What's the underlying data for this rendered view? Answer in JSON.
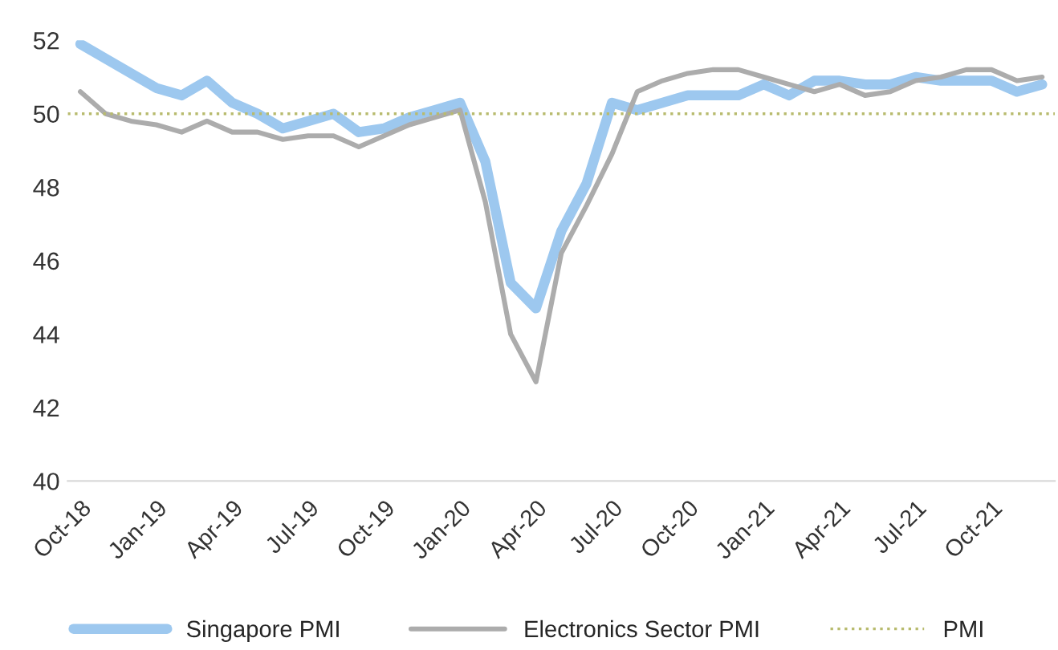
{
  "chart_data": {
    "type": "line",
    "categories": [
      "Oct-18",
      null,
      null,
      "Jan-19",
      null,
      null,
      "Apr-19",
      null,
      null,
      "Jul-19",
      null,
      null,
      "Oct-19",
      null,
      null,
      "Jan-20",
      null,
      null,
      "Apr-20",
      null,
      null,
      "Jul-20",
      null,
      null,
      "Oct-20",
      null,
      null,
      "Jan-21",
      null,
      null,
      "Apr-21",
      null,
      null,
      "Jul-21",
      null,
      null,
      "Oct-21",
      null,
      null
    ],
    "series": [
      {
        "name": "Singapore PMI",
        "color": "#9dc8ef",
        "values": [
          51.9,
          51.5,
          51.1,
          50.7,
          50.5,
          50.9,
          50.3,
          50.0,
          49.6,
          49.8,
          50.0,
          49.5,
          49.6,
          49.9,
          50.1,
          50.3,
          48.7,
          45.4,
          44.7,
          46.8,
          48.1,
          50.3,
          50.1,
          50.3,
          50.5,
          50.5,
          50.5,
          50.8,
          50.5,
          50.9,
          50.9,
          50.8,
          50.8,
          51.0,
          50.9,
          50.9,
          50.9,
          50.6,
          50.8
        ]
      },
      {
        "name": "Electronics Sector PMI",
        "color": "#acacac",
        "values": [
          50.6,
          50.0,
          49.8,
          49.7,
          49.5,
          49.8,
          49.5,
          49.5,
          49.3,
          49.4,
          49.4,
          49.1,
          49.4,
          49.7,
          49.9,
          50.1,
          47.6,
          44.0,
          42.7,
          46.2,
          47.5,
          48.9,
          50.6,
          50.9,
          51.1,
          51.2,
          51.2,
          51.0,
          50.8,
          50.6,
          50.8,
          50.5,
          50.6,
          50.9,
          51.0,
          51.2,
          51.2,
          50.9,
          51.0
        ]
      }
    ],
    "ylim": [
      40,
      52
    ],
    "yticks": [
      40,
      42,
      44,
      46,
      48,
      50,
      52
    ],
    "ref_lines": [
      {
        "axis": "y",
        "value": 50,
        "label": "PMI",
        "color": "#b8bb6e",
        "line_style": "dotted"
      }
    ],
    "legend": "bottom",
    "grid": false
  }
}
